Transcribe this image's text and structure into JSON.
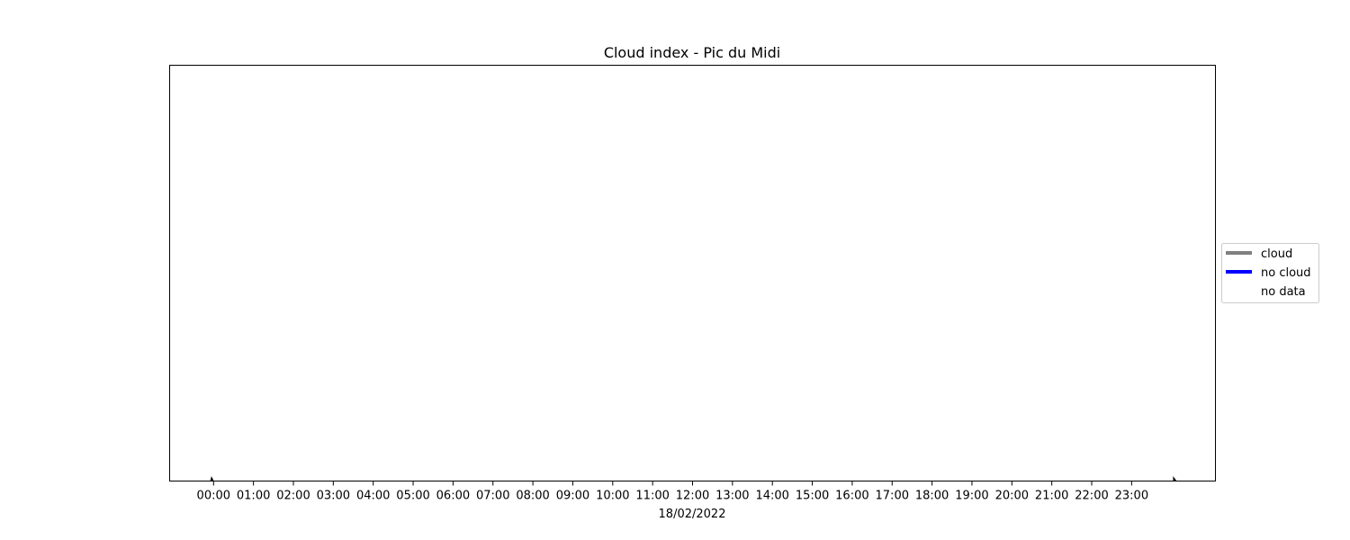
{
  "chart_data": {
    "type": "line",
    "title": "Cloud index - Pic du Midi",
    "xlabel": "18/02/2022",
    "ylabel": "",
    "x_ticks": [
      "00:00",
      "01:00",
      "02:00",
      "03:00",
      "04:00",
      "05:00",
      "06:00",
      "07:00",
      "08:00",
      "09:00",
      "10:00",
      "11:00",
      "12:00",
      "13:00",
      "14:00",
      "15:00",
      "16:00",
      "17:00",
      "18:00",
      "19:00",
      "20:00",
      "21:00",
      "22:00",
      "23:00"
    ],
    "xlim_hours": [
      -1.1,
      25.1
    ],
    "grid": false,
    "legend": {
      "placement": "right",
      "entries": [
        {
          "name": "cloud",
          "color": "#808080"
        },
        {
          "name": "no cloud",
          "color": "#0000ff"
        },
        {
          "name": "no data",
          "color": "#ffffff"
        }
      ]
    },
    "series": [
      {
        "name": "cloud",
        "x": [],
        "y": []
      },
      {
        "name": "no cloud",
        "x": [],
        "y": []
      },
      {
        "name": "no data",
        "x": [],
        "y": []
      }
    ],
    "end_markers_hours": [
      -0.05,
      24.05
    ]
  }
}
